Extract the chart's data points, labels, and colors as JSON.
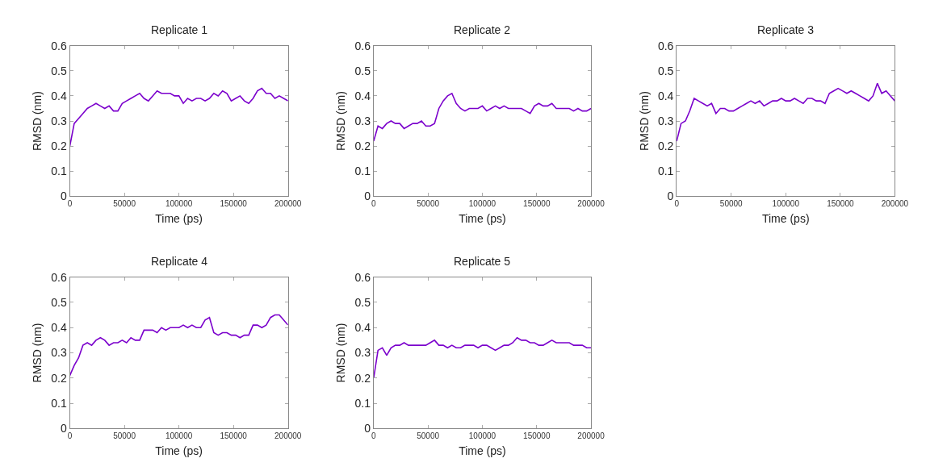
{
  "chart_data": [
    {
      "type": "line",
      "title": "Replicate 1",
      "xlabel": "Time (ps)",
      "ylabel": "RMSD (nm)",
      "color": "#7b00cc",
      "xlim": [
        0,
        200000
      ],
      "ylim": [
        0,
        0.6
      ],
      "xticks": [
        0,
        50000,
        100000,
        150000,
        200000
      ],
      "yticks": [
        0,
        0.1,
        0.2,
        0.3,
        0.4,
        0.5,
        0.6
      ],
      "grid": false,
      "marker": "none",
      "line_style": "solid",
      "x": [
        0,
        4000,
        8000,
        12000,
        16000,
        20000,
        24000,
        28000,
        32000,
        36000,
        40000,
        44000,
        48000,
        52000,
        56000,
        60000,
        64000,
        68000,
        72000,
        76000,
        80000,
        84000,
        88000,
        92000,
        96000,
        100000,
        104000,
        108000,
        112000,
        116000,
        120000,
        124000,
        128000,
        132000,
        136000,
        140000,
        144000,
        148000,
        152000,
        156000,
        160000,
        164000,
        168000,
        172000,
        176000,
        180000,
        184000,
        188000,
        192000,
        196000,
        200000
      ],
      "values": [
        0.2,
        0.29,
        0.31,
        0.33,
        0.35,
        0.36,
        0.37,
        0.36,
        0.35,
        0.36,
        0.34,
        0.34,
        0.37,
        0.38,
        0.39,
        0.4,
        0.41,
        0.39,
        0.38,
        0.4,
        0.42,
        0.41,
        0.41,
        0.41,
        0.4,
        0.4,
        0.37,
        0.39,
        0.38,
        0.39,
        0.39,
        0.38,
        0.39,
        0.41,
        0.4,
        0.42,
        0.41,
        0.38,
        0.39,
        0.4,
        0.38,
        0.37,
        0.39,
        0.42,
        0.43,
        0.41,
        0.41,
        0.39,
        0.4,
        0.39,
        0.38
      ]
    },
    {
      "type": "line",
      "title": "Replicate 2",
      "xlabel": "Time (ps)",
      "ylabel": "RMSD (nm)",
      "color": "#7b00cc",
      "xlim": [
        0,
        200000
      ],
      "ylim": [
        0,
        0.6
      ],
      "xticks": [
        0,
        50000,
        100000,
        150000,
        200000
      ],
      "yticks": [
        0,
        0.1,
        0.2,
        0.3,
        0.4,
        0.5,
        0.6
      ],
      "grid": false,
      "marker": "none",
      "line_style": "solid",
      "x": [
        0,
        4000,
        8000,
        12000,
        16000,
        20000,
        24000,
        28000,
        32000,
        36000,
        40000,
        44000,
        48000,
        52000,
        56000,
        60000,
        64000,
        68000,
        72000,
        76000,
        80000,
        84000,
        88000,
        92000,
        96000,
        100000,
        104000,
        108000,
        112000,
        116000,
        120000,
        124000,
        128000,
        132000,
        136000,
        140000,
        144000,
        148000,
        152000,
        156000,
        160000,
        164000,
        168000,
        172000,
        176000,
        180000,
        184000,
        188000,
        192000,
        196000,
        200000
      ],
      "values": [
        0.22,
        0.28,
        0.27,
        0.29,
        0.3,
        0.29,
        0.29,
        0.27,
        0.28,
        0.29,
        0.29,
        0.3,
        0.28,
        0.28,
        0.29,
        0.35,
        0.38,
        0.4,
        0.41,
        0.37,
        0.35,
        0.34,
        0.35,
        0.35,
        0.35,
        0.36,
        0.34,
        0.35,
        0.36,
        0.35,
        0.36,
        0.35,
        0.35,
        0.35,
        0.35,
        0.34,
        0.33,
        0.36,
        0.37,
        0.36,
        0.36,
        0.37,
        0.35,
        0.35,
        0.35,
        0.35,
        0.34,
        0.35,
        0.34,
        0.34,
        0.35
      ]
    },
    {
      "type": "line",
      "title": "Replicate 3",
      "xlabel": "Time (ps)",
      "ylabel": "RMSD (nm)",
      "color": "#7b00cc",
      "xlim": [
        0,
        200000
      ],
      "ylim": [
        0,
        0.6
      ],
      "xticks": [
        0,
        50000,
        100000,
        150000,
        200000
      ],
      "yticks": [
        0,
        0.1,
        0.2,
        0.3,
        0.4,
        0.5,
        0.6
      ],
      "grid": false,
      "marker": "none",
      "line_style": "solid",
      "x": [
        0,
        4000,
        8000,
        12000,
        16000,
        20000,
        24000,
        28000,
        32000,
        36000,
        40000,
        44000,
        48000,
        52000,
        56000,
        60000,
        64000,
        68000,
        72000,
        76000,
        80000,
        84000,
        88000,
        92000,
        96000,
        100000,
        104000,
        108000,
        112000,
        116000,
        120000,
        124000,
        128000,
        132000,
        136000,
        140000,
        144000,
        148000,
        152000,
        156000,
        160000,
        164000,
        168000,
        172000,
        176000,
        180000,
        184000,
        188000,
        192000,
        196000,
        200000
      ],
      "values": [
        0.22,
        0.29,
        0.3,
        0.34,
        0.39,
        0.38,
        0.37,
        0.36,
        0.37,
        0.33,
        0.35,
        0.35,
        0.34,
        0.34,
        0.35,
        0.36,
        0.37,
        0.38,
        0.37,
        0.38,
        0.36,
        0.37,
        0.38,
        0.38,
        0.39,
        0.38,
        0.38,
        0.39,
        0.38,
        0.37,
        0.39,
        0.39,
        0.38,
        0.38,
        0.37,
        0.41,
        0.42,
        0.43,
        0.42,
        0.41,
        0.42,
        0.41,
        0.4,
        0.39,
        0.38,
        0.4,
        0.45,
        0.41,
        0.42,
        0.4,
        0.38
      ]
    },
    {
      "type": "line",
      "title": "Replicate 4",
      "xlabel": "Time (ps)",
      "ylabel": "RMSD (nm)",
      "color": "#7b00cc",
      "xlim": [
        0,
        200000
      ],
      "ylim": [
        0,
        0.6
      ],
      "xticks": [
        0,
        50000,
        100000,
        150000,
        200000
      ],
      "yticks": [
        0,
        0.1,
        0.2,
        0.3,
        0.4,
        0.5,
        0.6
      ],
      "grid": false,
      "marker": "none",
      "line_style": "solid",
      "x": [
        0,
        4000,
        8000,
        12000,
        16000,
        20000,
        24000,
        28000,
        32000,
        36000,
        40000,
        44000,
        48000,
        52000,
        56000,
        60000,
        64000,
        68000,
        72000,
        76000,
        80000,
        84000,
        88000,
        92000,
        96000,
        100000,
        104000,
        108000,
        112000,
        116000,
        120000,
        124000,
        128000,
        132000,
        136000,
        140000,
        144000,
        148000,
        152000,
        156000,
        160000,
        164000,
        168000,
        172000,
        176000,
        180000,
        184000,
        188000,
        192000,
        196000,
        200000
      ],
      "values": [
        0.21,
        0.25,
        0.28,
        0.33,
        0.34,
        0.33,
        0.35,
        0.36,
        0.35,
        0.33,
        0.34,
        0.34,
        0.35,
        0.34,
        0.36,
        0.35,
        0.35,
        0.39,
        0.39,
        0.39,
        0.38,
        0.4,
        0.39,
        0.4,
        0.4,
        0.4,
        0.41,
        0.4,
        0.41,
        0.4,
        0.4,
        0.43,
        0.44,
        0.38,
        0.37,
        0.38,
        0.38,
        0.37,
        0.37,
        0.36,
        0.37,
        0.37,
        0.41,
        0.41,
        0.4,
        0.41,
        0.44,
        0.45,
        0.45,
        0.43,
        0.41
      ]
    },
    {
      "type": "line",
      "title": "Replicate 5",
      "xlabel": "Time (ps)",
      "ylabel": "RMSD (nm)",
      "color": "#7b00cc",
      "xlim": [
        0,
        200000
      ],
      "ylim": [
        0,
        0.6
      ],
      "xticks": [
        0,
        50000,
        100000,
        150000,
        200000
      ],
      "yticks": [
        0,
        0.1,
        0.2,
        0.3,
        0.4,
        0.5,
        0.6
      ],
      "grid": false,
      "marker": "none",
      "line_style": "solid",
      "x": [
        0,
        4000,
        8000,
        12000,
        16000,
        20000,
        24000,
        28000,
        32000,
        36000,
        40000,
        44000,
        48000,
        52000,
        56000,
        60000,
        64000,
        68000,
        72000,
        76000,
        80000,
        84000,
        88000,
        92000,
        96000,
        100000,
        104000,
        108000,
        112000,
        116000,
        120000,
        124000,
        128000,
        132000,
        136000,
        140000,
        144000,
        148000,
        152000,
        156000,
        160000,
        164000,
        168000,
        172000,
        176000,
        180000,
        184000,
        188000,
        192000,
        196000,
        200000
      ],
      "values": [
        0.2,
        0.31,
        0.32,
        0.29,
        0.32,
        0.33,
        0.33,
        0.34,
        0.33,
        0.33,
        0.33,
        0.33,
        0.33,
        0.34,
        0.35,
        0.33,
        0.33,
        0.32,
        0.33,
        0.32,
        0.32,
        0.33,
        0.33,
        0.33,
        0.32,
        0.33,
        0.33,
        0.32,
        0.31,
        0.32,
        0.33,
        0.33,
        0.34,
        0.36,
        0.35,
        0.35,
        0.34,
        0.34,
        0.33,
        0.33,
        0.34,
        0.35,
        0.34,
        0.34,
        0.34,
        0.34,
        0.33,
        0.33,
        0.33,
        0.32,
        0.32
      ]
    }
  ]
}
